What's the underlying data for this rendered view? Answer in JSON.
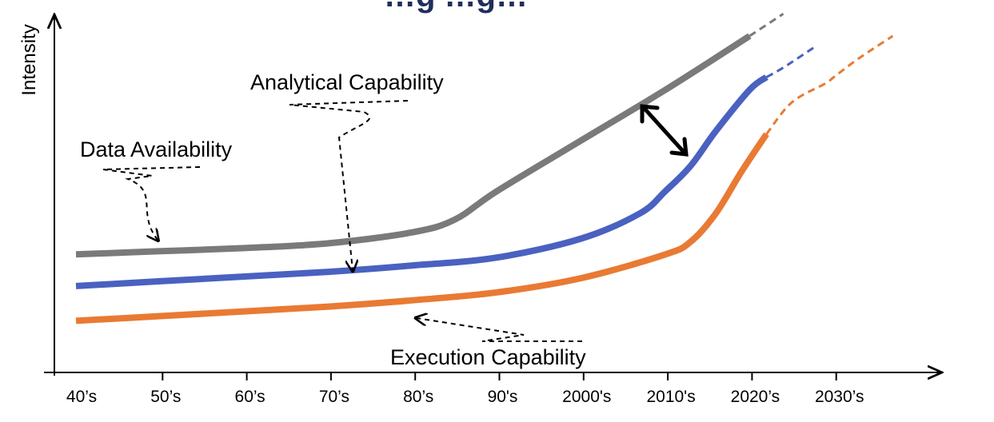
{
  "chart_data": {
    "type": "line",
    "title": "…g …g…",
    "ylabel": "Intensity",
    "xlabel": "",
    "categories": [
      "40’s",
      "50’s",
      "60’s",
      "70’s",
      "80’s",
      "90's",
      "2000's",
      "2010's",
      "2020’s",
      "2030’s"
    ],
    "ylim": [
      0,
      100
    ],
    "series": [
      {
        "name": "Data Availability",
        "color": "#7a7a7a",
        "x": [
          0,
          1,
          2,
          3,
          4,
          4.5,
          5,
          6,
          7,
          8,
          8.4
        ],
        "y": [
          32,
          33,
          34,
          35.5,
          39,
          43,
          52,
          68,
          84,
          101,
          108
        ],
        "projected_from": 8.0
      },
      {
        "name": "Analytical Capability",
        "color": "#4a61c0",
        "x": [
          0,
          1,
          2,
          3,
          4,
          5,
          6,
          6.7,
          7,
          7.3,
          7.6,
          8.0,
          8.2,
          8.4,
          8.8
        ],
        "y": [
          22,
          23.5,
          25,
          26.5,
          28.5,
          31,
          37,
          45,
          52,
          60,
          71,
          84,
          88,
          91,
          98
        ],
        "projected_from": 8.2
      },
      {
        "name": "Execution Capability",
        "color": "#e97a33",
        "x": [
          0,
          1,
          2,
          3,
          4,
          5,
          6,
          7,
          7.3,
          7.6,
          7.9,
          8.2,
          8.5,
          8.9,
          9.0,
          9.3,
          9.7
        ],
        "y": [
          11,
          12.5,
          14,
          15.5,
          17.5,
          20,
          24.5,
          32,
          36,
          45,
          58,
          70,
          80,
          86,
          88,
          94,
          101
        ],
        "projected_from": 8.2
      }
    ],
    "annotations": [
      {
        "text": "Data Availability",
        "target": "Data Availability"
      },
      {
        "text": "Analytical Capability",
        "target": "Analytical Capability"
      },
      {
        "text": "Execution Capability",
        "target": "Execution Capability"
      },
      {
        "text": "double-arrow",
        "between": [
          "Data Availability",
          "Analytical Capability"
        ]
      }
    ],
    "grid": false,
    "legend": "none"
  }
}
